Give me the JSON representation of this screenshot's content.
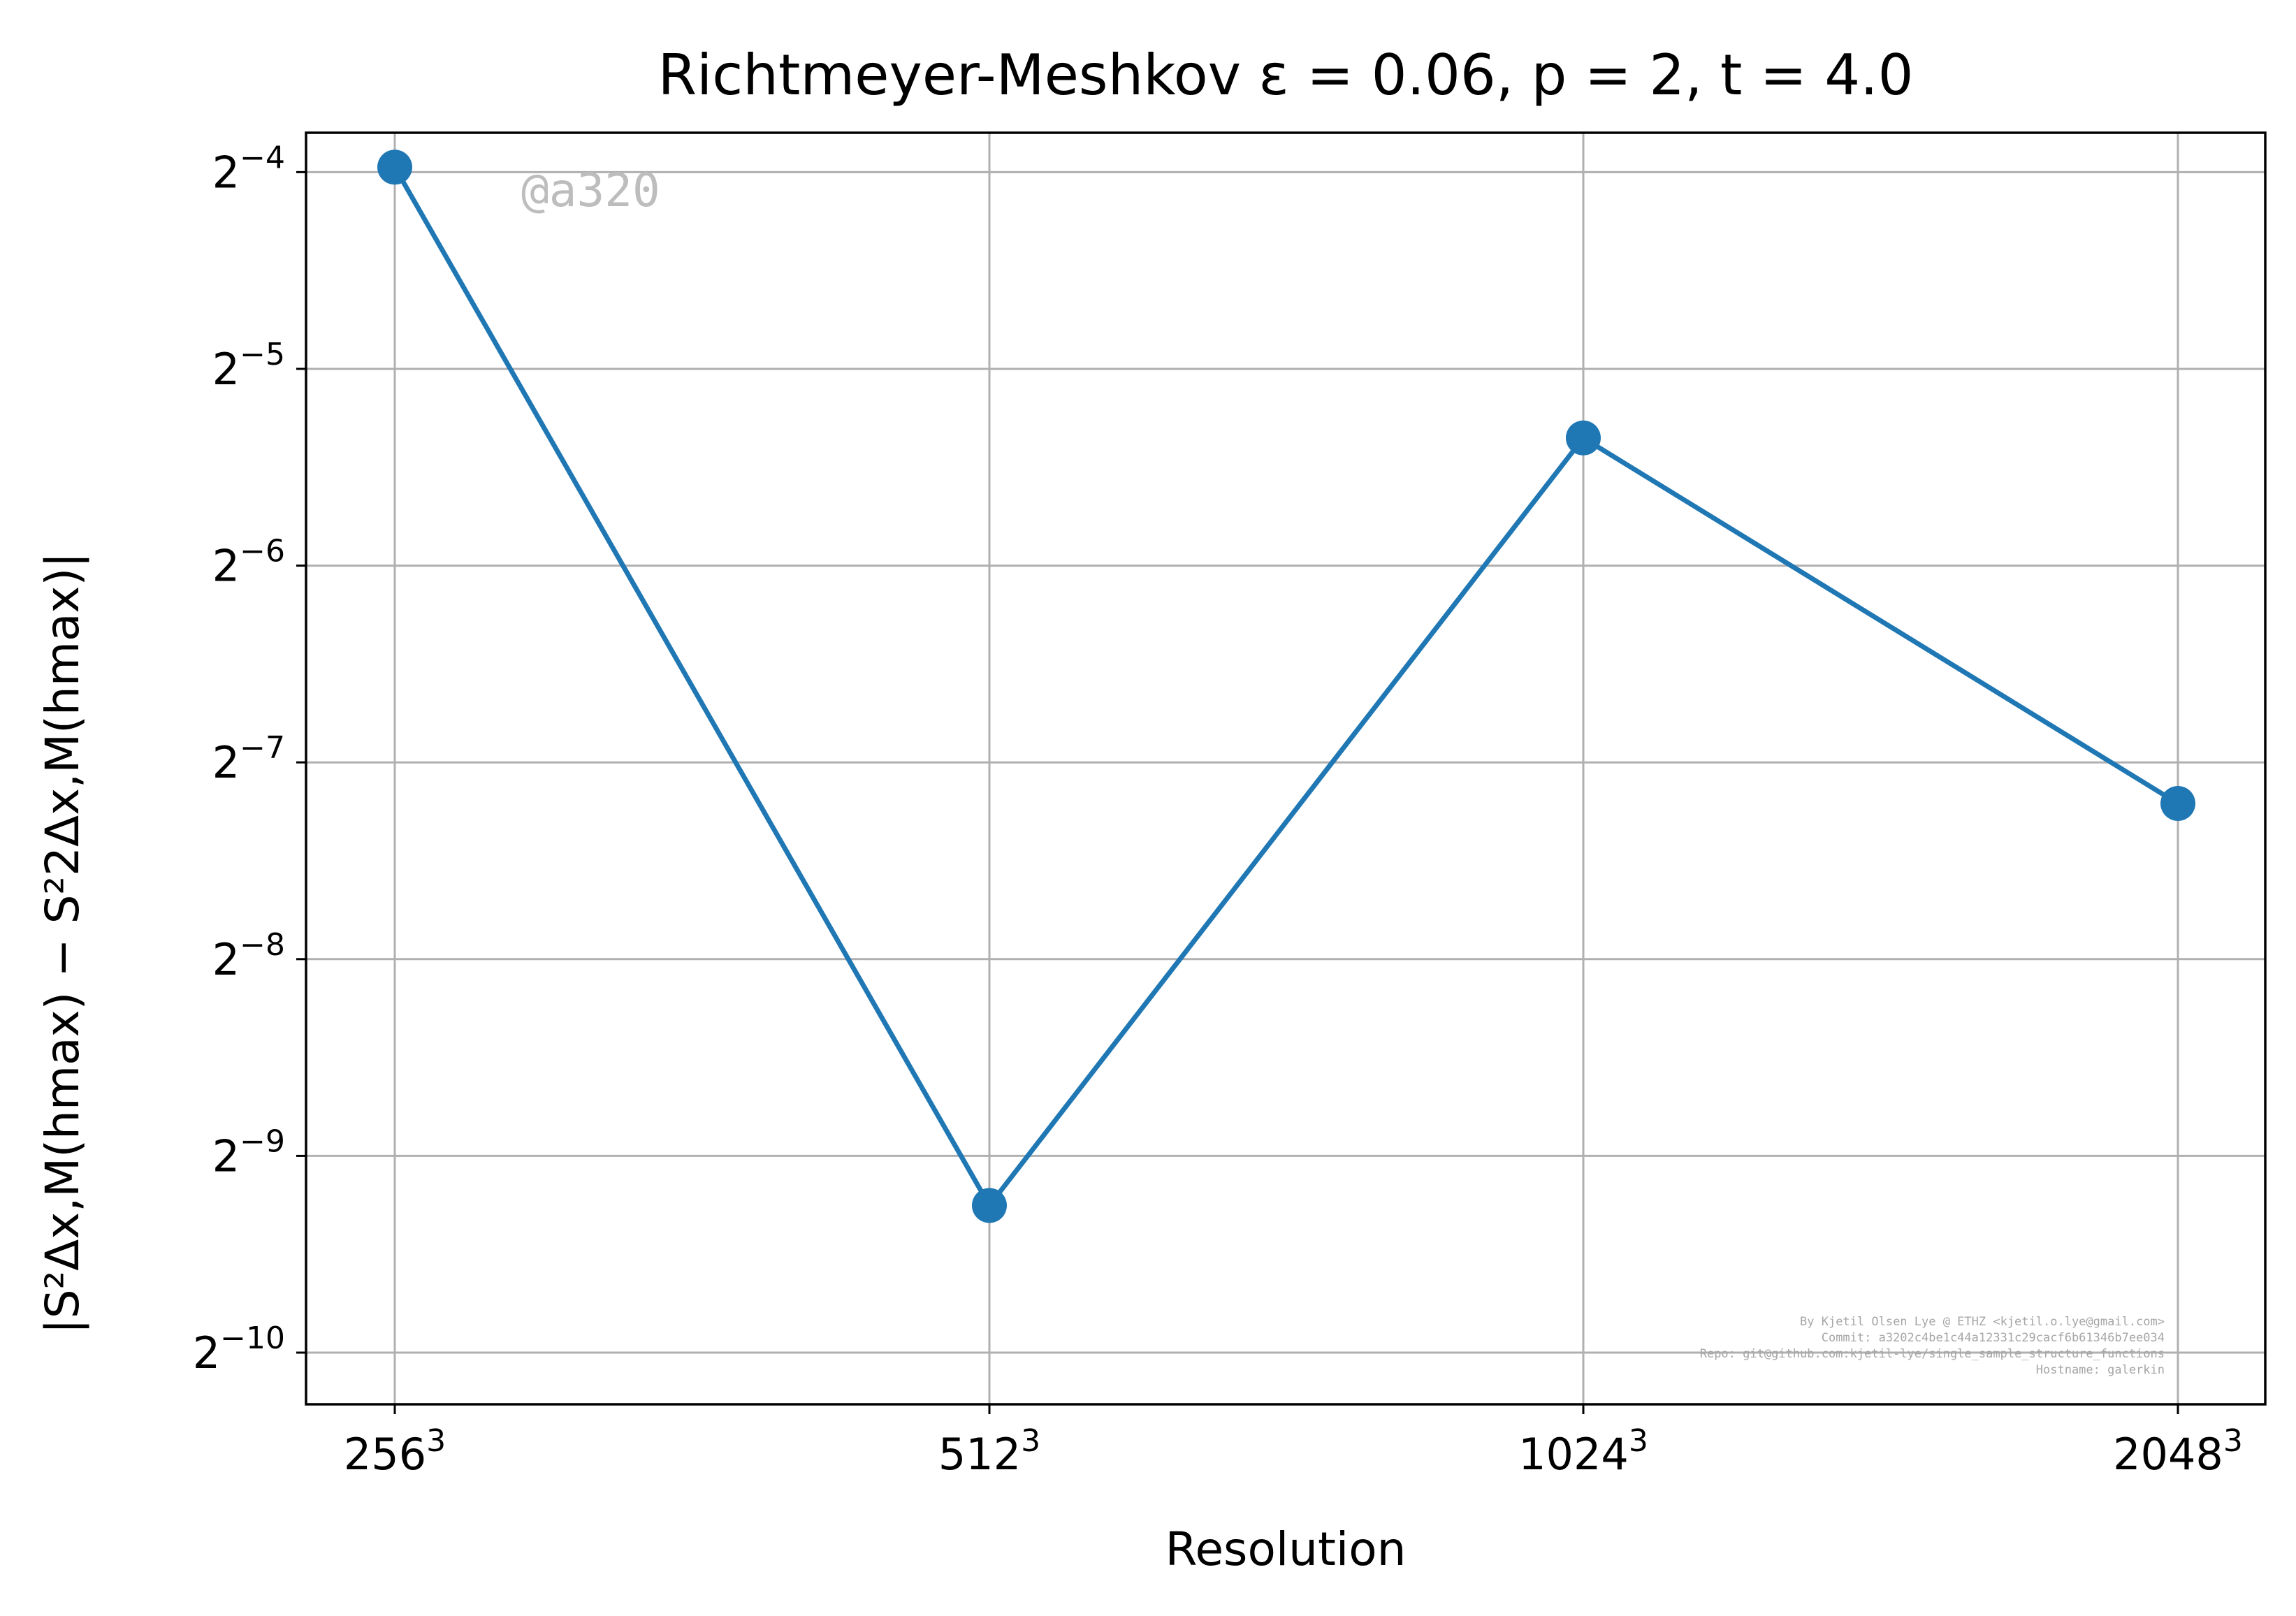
{
  "chart_data": {
    "type": "line",
    "title": "Richtmeyer-Meshkov ε = 0.06, p = 2, t = 4.0",
    "xlabel": "Resolution",
    "ylabel": "|S²Δx,M(hmax) − S²2Δx,M(hmax)|",
    "x_scale": "log2",
    "y_scale": "log2",
    "categories": [
      "256³",
      "512³",
      "1024³",
      "2048³"
    ],
    "x_ticks": [
      {
        "base": "256",
        "exp": "3"
      },
      {
        "base": "512",
        "exp": "3"
      },
      {
        "base": "1024",
        "exp": "3"
      },
      {
        "base": "2048",
        "exp": "3"
      }
    ],
    "y_ticks": [
      {
        "base": "2",
        "exp": "−4",
        "value": -4
      },
      {
        "base": "2",
        "exp": "−5",
        "value": -5
      },
      {
        "base": "2",
        "exp": "−6",
        "value": -6
      },
      {
        "base": "2",
        "exp": "−7",
        "value": -7
      },
      {
        "base": "2",
        "exp": "−8",
        "value": -8
      },
      {
        "base": "2",
        "exp": "−9",
        "value": -9
      },
      {
        "base": "2",
        "exp": "−10",
        "value": -10
      }
    ],
    "series": [
      {
        "values": [
          0.0636,
          0.00164,
          0.0245,
          0.00676
        ],
        "color": "#1f77b4",
        "marker": "circle"
      }
    ],
    "ylim": [
      0.000814,
      0.0718
    ],
    "grid": true,
    "legend": "none",
    "watermark": "@a320",
    "credits": [
      "By Kjetil Olsen Lye @ ETHZ <kjetil.o.lye@gmail.com>",
      "Commit: a3202c4be1c44a12331c29cacf6b61346b7ee034",
      "Repo: git@github.com:kjetil-lye/single_sample_structure_functions",
      "Hostname: galerkin"
    ]
  }
}
